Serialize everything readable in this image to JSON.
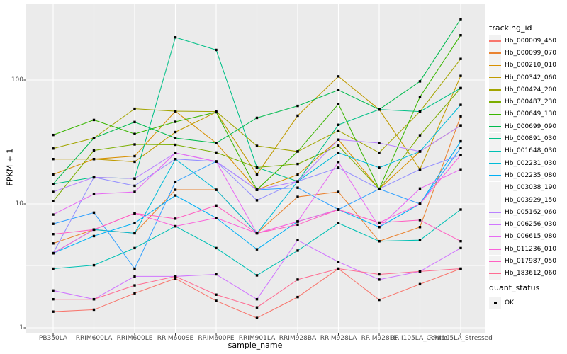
{
  "chart_data": {
    "type": "line",
    "xlabel": "sample_name",
    "ylabel": "FPKM + 1",
    "yscale": "log10",
    "ylim": [
      1,
      380
    ],
    "yticks": [
      "1",
      "10",
      "100"
    ],
    "yminor": [
      3.162,
      31.62,
      316.2
    ],
    "grid": true,
    "legend_position": "right",
    "point_shape": "filled-square",
    "point_color": "#000000",
    "categories": [
      "PB350LA",
      "RRIM600LA",
      "RRIM600LE",
      "RRIM600SE",
      "RRIM600PE",
      "RRIM901LA",
      "RRIM928BA",
      "RRIM928LA",
      "RRIM928LE",
      "RRII105LA_Control",
      "RRII105LA_Stressed"
    ],
    "series": [
      {
        "name": "Hb_000009_450",
        "color": "#F8766D",
        "values": [
          1.35,
          1.4,
          1.9,
          2.5,
          1.65,
          1.2,
          1.77,
          3.0,
          1.68,
          2.25,
          3.0
        ]
      },
      {
        "name": "Hb_000099_070",
        "color": "#EA8331",
        "values": [
          4.8,
          6.2,
          5.8,
          13,
          13,
          5.8,
          11.4,
          12.5,
          5.0,
          6.5,
          51
        ]
      },
      {
        "name": "Hb_000210_010",
        "color": "#D89000",
        "values": [
          17.3,
          23,
          24.3,
          56,
          31,
          13,
          17.2,
          33,
          13.2,
          26.5,
          43
        ]
      },
      {
        "name": "Hb_000342_060",
        "color": "#C09B00",
        "values": [
          23,
          23,
          21.9,
          38,
          55,
          17.3,
          51.5,
          107,
          57.8,
          19,
          108
        ]
      },
      {
        "name": "Hb_000424_200",
        "color": "#A3A500",
        "values": [
          28,
          34,
          58.6,
          56,
          55.6,
          29.4,
          26.5,
          39,
          25.9,
          55.6,
          148
        ]
      },
      {
        "name": "Hb_000487_230",
        "color": "#7CAE00",
        "values": [
          10.5,
          27,
          30.2,
          30,
          26,
          19.7,
          21,
          29.5,
          13.2,
          35.8,
          86
        ]
      },
      {
        "name": "Hb_000649_130",
        "color": "#39B600",
        "values": [
          36,
          47.6,
          36.7,
          46,
          55,
          13,
          26.5,
          64,
          13.2,
          73,
          230
        ]
      },
      {
        "name": "Hb_000699_090",
        "color": "#00BB4E",
        "values": [
          14.5,
          34,
          45.8,
          34,
          31,
          49.5,
          61.8,
          83,
          57.8,
          97.5,
          310
        ]
      },
      {
        "name": "Hb_000891_030",
        "color": "#00C087",
        "values": [
          14.5,
          16.4,
          16,
          221,
          175,
          19.7,
          15.2,
          43.5,
          57.8,
          55.6,
          86
        ]
      },
      {
        "name": "Hb_001648_030",
        "color": "#00C0B4",
        "values": [
          3.0,
          3.2,
          4.4,
          6.6,
          4.4,
          2.65,
          4.2,
          7.0,
          5.0,
          5.1,
          9.0
        ]
      },
      {
        "name": "Hb_002231_030",
        "color": "#00BCD8",
        "values": [
          4.0,
          6.2,
          5.8,
          23,
          13,
          5.8,
          15.2,
          25.9,
          19.6,
          26.5,
          63
        ]
      },
      {
        "name": "Hb_002235_080",
        "color": "#00B0F6",
        "values": [
          4.0,
          5.5,
          7.0,
          11.7,
          7.7,
          4.3,
          7.2,
          9.0,
          6.5,
          10,
          32
        ]
      },
      {
        "name": "Hb_003038_190",
        "color": "#35A2FF",
        "values": [
          6.9,
          8.5,
          3.0,
          15.1,
          22,
          13,
          13.5,
          9.0,
          13.2,
          10,
          28.3
        ]
      },
      {
        "name": "Hb_003929_150",
        "color": "#9590FF",
        "values": [
          4.0,
          16.4,
          14,
          23,
          22,
          10.7,
          15.2,
          19.6,
          13.2,
          19,
          24.8
        ]
      },
      {
        "name": "Hb_005162_060",
        "color": "#B982FF",
        "values": [
          12.5,
          16.4,
          16,
          25.8,
          22,
          13,
          15.2,
          33,
          31,
          26.5,
          43
        ]
      },
      {
        "name": "Hb_006256_030",
        "color": "#D076FF",
        "values": [
          2.0,
          1.7,
          2.6,
          2.6,
          2.7,
          1.7,
          5.1,
          3.4,
          2.45,
          2.85,
          4.4
        ]
      },
      {
        "name": "Hb_006615_080",
        "color": "#E76BF3",
        "values": [
          8.2,
          12,
          12.5,
          25.8,
          22,
          5.8,
          7.2,
          21.8,
          6.5,
          13.3,
          19
        ]
      },
      {
        "name": "Hb_011236_010",
        "color": "#FA62DB",
        "values": [
          4.0,
          6.2,
          8.4,
          6.6,
          7.7,
          5.8,
          7.2,
          9.0,
          7.05,
          10,
          24.8
        ]
      },
      {
        "name": "Hb_017987_050",
        "color": "#FF61C2",
        "values": [
          5.7,
          6.2,
          8.4,
          7.6,
          9.7,
          5.8,
          6.8,
          9.0,
          7.05,
          7.4,
          5.0
        ]
      },
      {
        "name": "Hb_183612_060",
        "color": "#FF6C92",
        "values": [
          1.7,
          1.7,
          2.2,
          2.6,
          1.85,
          1.46,
          2.45,
          3.0,
          2.7,
          2.85,
          3.0
        ]
      }
    ]
  },
  "legend": {
    "color_title": "tracking_id",
    "shape_title": "quant_status",
    "shape_items": [
      {
        "label": "OK"
      }
    ]
  },
  "colors": {
    "panel_bg": "#EBEBEB",
    "grid": "#FFFFFF",
    "tick_mark": "#333333",
    "tick_text": "#4D4D4D",
    "key_bg": "#F2F2F2"
  }
}
